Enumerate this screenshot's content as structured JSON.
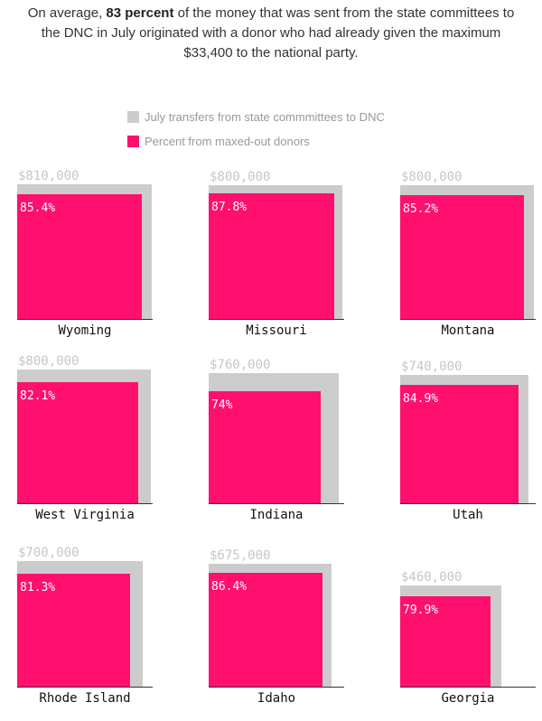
{
  "headline": {
    "before": "On average, ",
    "bold": "83 percent",
    "after": " of the money that was sent from the state committees to the DNC in July originated with a donor who had already given the maximum $33,400 to the national party."
  },
  "legend": [
    {
      "label": "July transfers from state commmittees to DNC",
      "color": "#cccccc"
    },
    {
      "label": "Percent from maxed-out donors",
      "color": "#ff0f6e"
    }
  ],
  "colors": {
    "transfer": "#cccccc",
    "maxed": "#ff0f6e"
  },
  "chart_data": {
    "type": "proportional-area squares (small multiples)",
    "unit_amount": "USD",
    "unit_percent": "%",
    "states": [
      {
        "name": "Wyoming",
        "amount": 810000,
        "amount_label": "$810,000",
        "percent": 85.4,
        "percent_label": "85.4%"
      },
      {
        "name": "Missouri",
        "amount": 800000,
        "amount_label": "$800,000",
        "percent": 87.8,
        "percent_label": "87.8%"
      },
      {
        "name": "Montana",
        "amount": 800000,
        "amount_label": "$800,000",
        "percent": 85.2,
        "percent_label": "85.2%"
      },
      {
        "name": "West Virginia",
        "amount": 800000,
        "amount_label": "$800,000",
        "percent": 82.1,
        "percent_label": "82.1%"
      },
      {
        "name": "Indiana",
        "amount": 760000,
        "amount_label": "$760,000",
        "percent": 74,
        "percent_label": "74%"
      },
      {
        "name": "Utah",
        "amount": 740000,
        "amount_label": "$740,000",
        "percent": 84.9,
        "percent_label": "84.9%"
      },
      {
        "name": "Rhode Island",
        "amount": 700000,
        "amount_label": "$700,000",
        "percent": 81.3,
        "percent_label": "81.3%"
      },
      {
        "name": "Idaho",
        "amount": 675000,
        "amount_label": "$675,000",
        "percent": 86.4,
        "percent_label": "86.4%"
      },
      {
        "name": "Georgia",
        "amount": 460000,
        "amount_label": "$460,000",
        "percent": 79.9,
        "percent_label": "79.9%"
      }
    ]
  }
}
